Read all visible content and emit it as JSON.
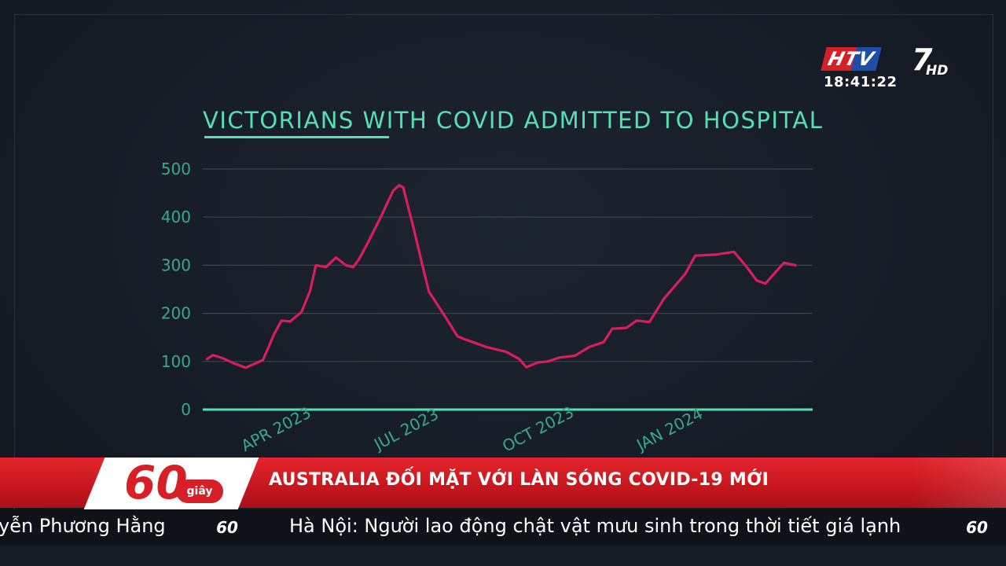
{
  "broadcast": {
    "channel_logo": "HTV",
    "channel_number": "7",
    "channel_hd": "HD",
    "clock": "18:41:22",
    "program_number": "60",
    "program_unit": "giây",
    "headline": "AUSTRALIA ĐỐI MẶT VỚI LÀN SÓNG COVID-19 MỚI",
    "ticker_left": "yễn Phương Hằng",
    "ticker_main": "Hà Nội: Người lao động chật vật mưu sinh trong thời tiết giá lạnh",
    "colors": {
      "accent": "#55e0b4",
      "line": "#d81e5b",
      "bar": "#d61f26",
      "ticker": "#0f1218"
    }
  },
  "chart_data": {
    "type": "line",
    "title": "VICTORIANS WITH COVID ADMITTED TO HOSPITAL",
    "ylim": [
      0,
      500
    ],
    "yticks": [
      0,
      100,
      200,
      300,
      400,
      500
    ],
    "xticks": [
      "APR 2023",
      "JUL 2023",
      "OCT 2023",
      "JAN 2024"
    ],
    "grid": true,
    "series": [
      {
        "values": [
          {
            "x": "2023-03-04",
            "y": 105
          },
          {
            "x": "2023-03-08",
            "y": 113
          },
          {
            "x": "2023-03-14",
            "y": 108
          },
          {
            "x": "2023-03-22",
            "y": 97
          },
          {
            "x": "2023-03-31",
            "y": 87
          },
          {
            "x": "2023-04-12",
            "y": 103
          },
          {
            "x": "2023-04-16",
            "y": 130
          },
          {
            "x": "2023-04-20",
            "y": 158
          },
          {
            "x": "2023-04-25",
            "y": 185
          },
          {
            "x": "2023-05-01",
            "y": 183
          },
          {
            "x": "2023-05-09",
            "y": 203
          },
          {
            "x": "2023-05-15",
            "y": 247
          },
          {
            "x": "2023-05-19",
            "y": 300
          },
          {
            "x": "2023-05-26",
            "y": 296
          },
          {
            "x": "2023-06-02",
            "y": 316
          },
          {
            "x": "2023-06-09",
            "y": 300
          },
          {
            "x": "2023-06-14",
            "y": 296
          },
          {
            "x": "2023-06-18",
            "y": 312
          },
          {
            "x": "2023-06-24",
            "y": 345
          },
          {
            "x": "2023-07-03",
            "y": 398
          },
          {
            "x": "2023-07-12",
            "y": 455
          },
          {
            "x": "2023-07-16",
            "y": 466
          },
          {
            "x": "2023-07-19",
            "y": 462
          },
          {
            "x": "2023-07-26",
            "y": 380
          },
          {
            "x": "2023-08-01",
            "y": 305
          },
          {
            "x": "2023-08-06",
            "y": 245
          },
          {
            "x": "2023-08-17",
            "y": 195
          },
          {
            "x": "2023-08-26",
            "y": 152
          },
          {
            "x": "2023-09-02",
            "y": 144
          },
          {
            "x": "2023-09-15",
            "y": 130
          },
          {
            "x": "2023-09-29",
            "y": 120
          },
          {
            "x": "2023-10-08",
            "y": 105
          },
          {
            "x": "2023-10-13",
            "y": 88
          },
          {
            "x": "2023-10-21",
            "y": 98
          },
          {
            "x": "2023-10-28",
            "y": 100
          },
          {
            "x": "2023-11-05",
            "y": 108
          },
          {
            "x": "2023-11-16",
            "y": 112
          },
          {
            "x": "2023-11-26",
            "y": 130
          },
          {
            "x": "2023-12-06",
            "y": 140
          },
          {
            "x": "2023-12-12",
            "y": 168
          },
          {
            "x": "2023-12-22",
            "y": 170
          },
          {
            "x": "2023-12-29",
            "y": 185
          },
          {
            "x": "2024-01-07",
            "y": 182
          },
          {
            "x": "2024-01-17",
            "y": 230
          },
          {
            "x": "2024-02-01",
            "y": 282
          },
          {
            "x": "2024-02-08",
            "y": 320
          },
          {
            "x": "2024-02-22",
            "y": 322
          },
          {
            "x": "2024-03-06",
            "y": 328
          },
          {
            "x": "2024-03-14",
            "y": 300
          },
          {
            "x": "2024-03-22",
            "y": 268
          },
          {
            "x": "2024-03-28",
            "y": 262
          },
          {
            "x": "2024-04-06",
            "y": 292
          },
          {
            "x": "2024-04-10",
            "y": 305
          },
          {
            "x": "2024-04-18",
            "y": 300
          }
        ]
      }
    ]
  }
}
